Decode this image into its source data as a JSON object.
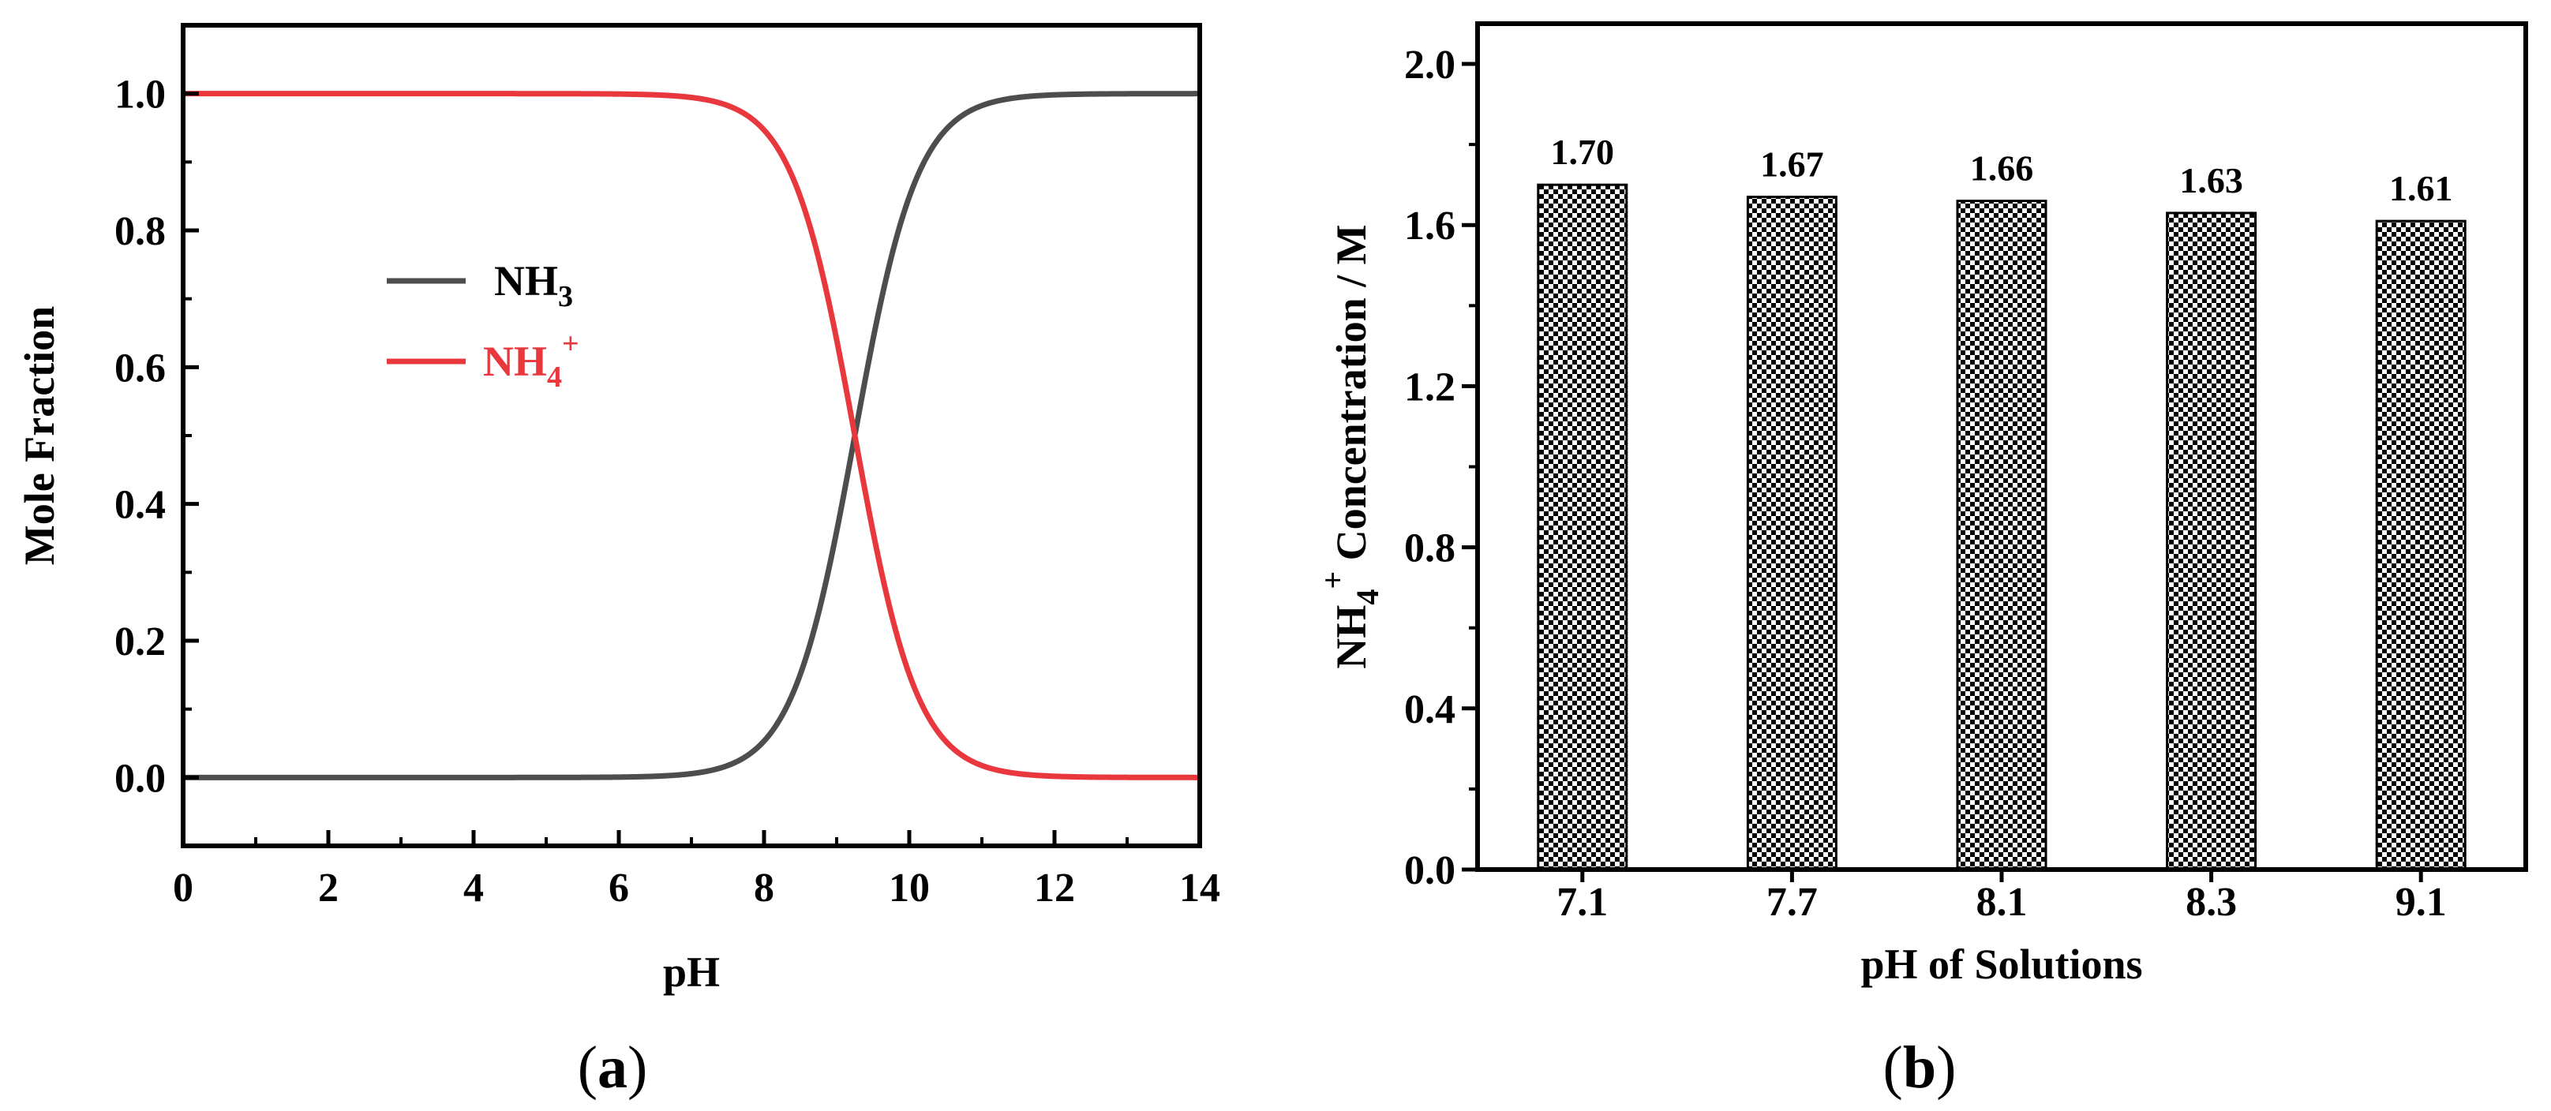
{
  "chart_data": [
    {
      "type": "line",
      "panel": "a",
      "xlabel": "pH",
      "ylabel": "Mole Fraction",
      "xlim": [
        0,
        14
      ],
      "ylim": [
        -0.1,
        1.1
      ],
      "xticks": [
        "0",
        "2",
        "4",
        "6",
        "8",
        "10",
        "12",
        "14"
      ],
      "yticks": [
        "0.0",
        "0.2",
        "0.4",
        "0.6",
        "0.8",
        "1.0"
      ],
      "pKa": 9.25,
      "series": [
        {
          "name": "NH3",
          "label_main": "NH",
          "label_sub": "3",
          "label_sup": "",
          "color": "#4d4d4d",
          "x": [
            0,
            2,
            4,
            6,
            7,
            7.5,
            8,
            8.5,
            9,
            9.25,
            9.5,
            10,
            10.5,
            11,
            12,
            14
          ],
          "values": [
            0.0,
            0.0,
            0.0,
            0.001,
            0.006,
            0.018,
            0.053,
            0.151,
            0.36,
            0.5,
            0.64,
            0.849,
            0.947,
            0.982,
            0.998,
            1.0
          ]
        },
        {
          "name": "NH4+",
          "label_main": "NH",
          "label_sub": "4",
          "label_sup": "+",
          "color": "#e8383d",
          "x": [
            0,
            2,
            4,
            6,
            7,
            7.5,
            8,
            8.5,
            9,
            9.25,
            9.5,
            10,
            10.5,
            11,
            12,
            14
          ],
          "values": [
            1.0,
            1.0,
            1.0,
            0.999,
            0.994,
            0.982,
            0.947,
            0.849,
            0.64,
            0.5,
            0.36,
            0.151,
            0.053,
            0.018,
            0.002,
            0.0
          ]
        }
      ],
      "legend_position": "center-left",
      "caption": "a"
    },
    {
      "type": "bar",
      "panel": "b",
      "xlabel": "pH of Solutions",
      "ylabel_main": "NH",
      "ylabel_sub": "4",
      "ylabel_sup": "+",
      "ylabel_rest": " Concentration / M",
      "categories": [
        "7.1",
        "7.7",
        "8.1",
        "8.3",
        "9.1"
      ],
      "values": [
        1.7,
        1.67,
        1.66,
        1.63,
        1.61
      ],
      "value_labels": [
        "1.70",
        "1.67",
        "1.66",
        "1.63",
        "1.61"
      ],
      "ylim": [
        0,
        2.1
      ],
      "yticks": [
        "0.0",
        "0.4",
        "0.8",
        "1.2",
        "1.6",
        "2.0"
      ],
      "bar_pattern": "checkered black and white",
      "caption": "b"
    }
  ]
}
